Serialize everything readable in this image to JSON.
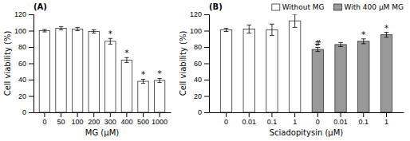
{
  "chart_data": [
    {
      "type": "bar",
      "title": "(A)",
      "categories": [
        "0",
        "50",
        "100",
        "200",
        "300",
        "400",
        "500",
        "1000"
      ],
      "values": [
        100,
        103,
        102,
        99,
        87,
        64,
        38,
        39
      ],
      "errors": [
        1.5,
        2.0,
        2.0,
        2.0,
        3.5,
        3.0,
        2.5,
        2.5
      ],
      "annotations": [
        null,
        null,
        null,
        null,
        "*",
        "*",
        "*",
        "*"
      ],
      "color": "#ffffff",
      "xlabel": "MG (μM)",
      "ylabel": "Cell viability (%)",
      "ylim": [
        0,
        120
      ],
      "yticks": [
        0,
        20,
        40,
        60,
        80,
        100,
        120
      ],
      "grid": false
    },
    {
      "type": "bar",
      "title": "(B)",
      "categories": [
        "0",
        "0.01",
        "0.1",
        "1",
        "0",
        "0.01",
        "0.1",
        "1"
      ],
      "series": [
        {
          "name": "Without MG",
          "color": "#ffffff",
          "values": [
            101,
            102,
            101,
            112,
            null,
            null,
            null,
            null
          ],
          "errors": [
            2.0,
            5.0,
            7.0,
            8.0,
            null,
            null,
            null,
            null
          ]
        },
        {
          "name": "With 400 μM MG",
          "color": "#999999",
          "values": [
            null,
            null,
            null,
            null,
            77,
            83,
            87,
            95
          ],
          "errors": [
            null,
            null,
            null,
            null,
            2.5,
            2.5,
            3.0,
            3.0
          ],
          "annotations": [
            null,
            null,
            null,
            null,
            "#",
            null,
            "*",
            "*"
          ]
        }
      ],
      "xlabel": "Sciadopitysin (μM)",
      "ylabel": "Cell viability (%)",
      "ylim": [
        0,
        120
      ],
      "yticks": [
        0,
        20,
        40,
        60,
        80,
        100,
        120
      ],
      "legend": "upper right",
      "grid": false
    }
  ]
}
